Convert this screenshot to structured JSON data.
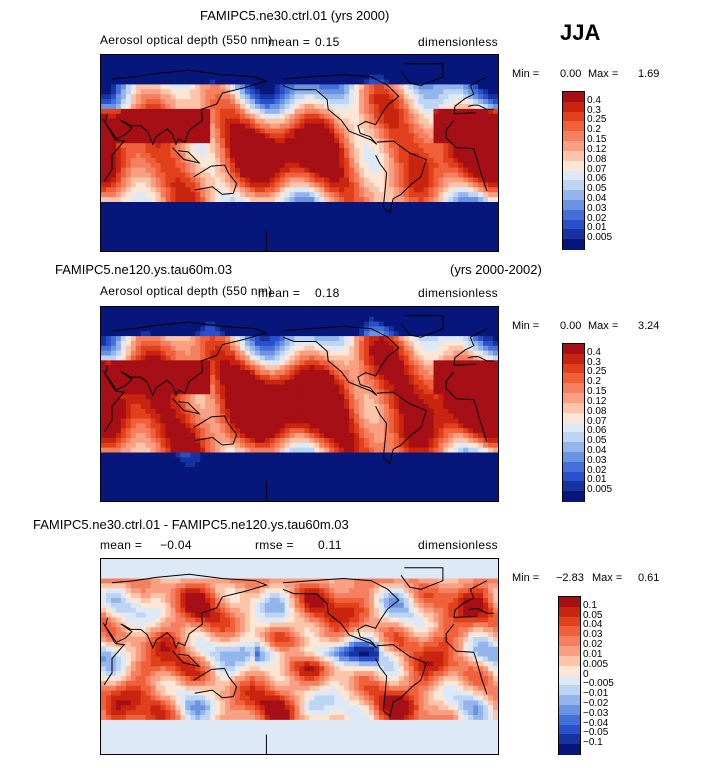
{
  "season": "JJA",
  "panels": [
    {
      "title": "FAMIPC5.ne30.ctrl.01 (yrs 2000)",
      "years": "",
      "subtitle_left": "Aerosol optical depth (550 nm)",
      "mean_label": "mean =",
      "mean_value": "0.15",
      "rmse_label": "",
      "rmse_value": "",
      "units": "dimensionless",
      "min_label": "Min =",
      "min_value": "0.00",
      "max_label": "Max =",
      "max_value": "1.69",
      "colorbar_levels": [
        "0.4",
        "0.3",
        "0.25",
        "0.2",
        "0.15",
        "0.12",
        "0.08",
        "0.07",
        "0.06",
        "0.05",
        "0.04",
        "0.03",
        "0.02",
        "0.01",
        "0.005"
      ],
      "colorbar_colors": [
        "#a50f15",
        "#c8240f",
        "#e0401c",
        "#f0603a",
        "#f58060",
        "#f9a083",
        "#fcc5aa",
        "#fde6d6",
        "#dde9f7",
        "#bdd4f2",
        "#93b5eb",
        "#6a93e2",
        "#446fd8",
        "#2a4fca",
        "#16339f",
        "#06167a"
      ]
    },
    {
      "title": "FAMIPC5.ne120.ys.tau60m.03",
      "years": "(yrs 2000-2002)",
      "subtitle_left": "Aerosol optical depth (550 nm)",
      "mean_label": "mean =",
      "mean_value": "0.18",
      "rmse_label": "",
      "rmse_value": "",
      "units": "dimensionless",
      "min_label": "Min =",
      "min_value": "0.00",
      "max_label": "Max =",
      "max_value": "3.24",
      "colorbar_levels": [
        "0.4",
        "0.3",
        "0.25",
        "0.2",
        "0.15",
        "0.12",
        "0.08",
        "0.07",
        "0.06",
        "0.05",
        "0.04",
        "0.03",
        "0.02",
        "0.01",
        "0.005"
      ],
      "colorbar_colors": [
        "#a50f15",
        "#c8240f",
        "#e0401c",
        "#f0603a",
        "#f58060",
        "#f9a083",
        "#fcc5aa",
        "#fde6d6",
        "#dde9f7",
        "#bdd4f2",
        "#93b5eb",
        "#6a93e2",
        "#446fd8",
        "#2a4fca",
        "#16339f",
        "#06167a"
      ]
    },
    {
      "title": "FAMIPC5.ne30.ctrl.01 - FAMIPC5.ne120.ys.tau60m.03",
      "years": "",
      "subtitle_left": "",
      "mean_label": "mean =",
      "mean_value": "−0.04",
      "rmse_label": "rmse =",
      "rmse_value": "0.11",
      "units": "dimensionless",
      "min_label": "Min =",
      "min_value": "−2.83",
      "max_label": "Max =",
      "max_value": "0.61",
      "colorbar_levels": [
        "0.1",
        "0.05",
        "0.04",
        "0.03",
        "0.02",
        "0.01",
        "0.005",
        "0",
        "−0.005",
        "−0.01",
        "−0.02",
        "−0.03",
        "−0.04",
        "−0.05",
        "−0.1"
      ],
      "colorbar_colors": [
        "#a50f15",
        "#c8240f",
        "#e0401c",
        "#f0603a",
        "#f58060",
        "#f9a083",
        "#fcc5aa",
        "#fde6d6",
        "#dde9f7",
        "#bdd4f2",
        "#93b5eb",
        "#6a93e2",
        "#446fd8",
        "#2a4fca",
        "#16339f",
        "#06167a"
      ]
    }
  ],
  "chart_data": [
    {
      "type": "heatmap",
      "title": "FAMIPC5.ne30.ctrl.01 (yrs 2000)",
      "variable": "Aerosol optical depth (550 nm)",
      "units": "dimensionless",
      "season": "JJA",
      "mean": 0.15,
      "min": 0.0,
      "max": 1.69,
      "levels": [
        0.005,
        0.01,
        0.02,
        0.03,
        0.04,
        0.05,
        0.06,
        0.07,
        0.08,
        0.12,
        0.15,
        0.2,
        0.25,
        0.3,
        0.4
      ]
    },
    {
      "type": "heatmap",
      "title": "FAMIPC5.ne120.ys.tau60m.03 (yrs 2000-2002)",
      "variable": "Aerosol optical depth (550 nm)",
      "units": "dimensionless",
      "season": "JJA",
      "mean": 0.18,
      "min": 0.0,
      "max": 3.24,
      "levels": [
        0.005,
        0.01,
        0.02,
        0.03,
        0.04,
        0.05,
        0.06,
        0.07,
        0.08,
        0.12,
        0.15,
        0.2,
        0.25,
        0.3,
        0.4
      ]
    },
    {
      "type": "heatmap",
      "title": "FAMIPC5.ne30.ctrl.01 - FAMIPC5.ne120.ys.tau60m.03",
      "units": "dimensionless",
      "season": "JJA",
      "mean": -0.04,
      "rmse": 0.11,
      "min": -2.83,
      "max": 0.61,
      "levels": [
        -0.1,
        -0.05,
        -0.04,
        -0.03,
        -0.02,
        -0.01,
        -0.005,
        0,
        0.005,
        0.01,
        0.02,
        0.03,
        0.04,
        0.05,
        0.1
      ]
    }
  ]
}
